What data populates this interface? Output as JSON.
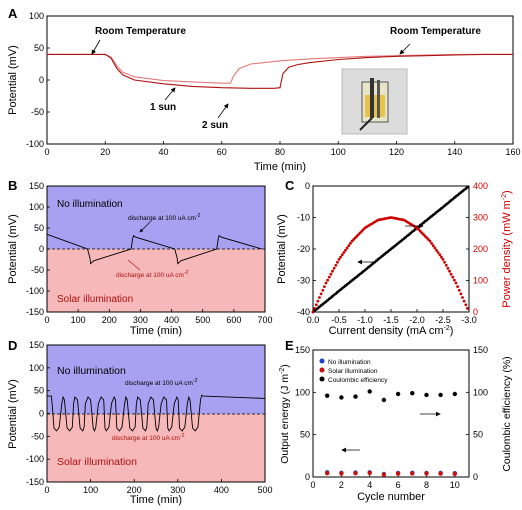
{
  "panels": {
    "A": {
      "letter": "A",
      "xlabel": "Time (min)",
      "ylabel": "Potential (mV)",
      "xticks": [
        "0",
        "20",
        "40",
        "60",
        "80",
        "100",
        "120",
        "140",
        "160"
      ],
      "yticks": [
        "100",
        "50",
        "0",
        "-50",
        "-100"
      ],
      "annotations": [
        "Room Temperature",
        "Room Temperature",
        "1 sun",
        "2 sun"
      ]
    },
    "B": {
      "letter": "B",
      "xlabel": "Time (min)",
      "ylabel": "Potential (mV)",
      "xticks": [
        "0",
        "100",
        "200",
        "300",
        "400",
        "500",
        "600",
        "700"
      ],
      "yticks": [
        "150",
        "100",
        "50",
        "0",
        "-50",
        "-100",
        "-150"
      ],
      "top_label": "No illumination",
      "bottom_label": "Solar illumination",
      "discharge_label": "discharge at 100 uA cm"
    },
    "C": {
      "letter": "C",
      "xlabel": "Current density (mA cm",
      "ylabel_left": "Potential (mV)",
      "ylabel_right": "Power density (mW m",
      "xticks": [
        "0.0",
        "-0.5",
        "-1.0",
        "-1.5",
        "-2.0",
        "-2.5",
        "-3.0"
      ],
      "yticks_left": [
        "0",
        "-10",
        "-20",
        "-30",
        "-40"
      ],
      "yticks_right": [
        "400",
        "300",
        "200",
        "100",
        "0"
      ]
    },
    "D": {
      "letter": "D",
      "xlabel": "Time (min)",
      "ylabel": "Potential (mV)",
      "xticks": [
        "0",
        "100",
        "200",
        "300",
        "400",
        "500"
      ],
      "yticks": [
        "150",
        "100",
        "50",
        "0",
        "-50",
        "-100",
        "-150"
      ],
      "top_label": "No illumination",
      "bottom_label": "Solar illumination",
      "discharge_label": "discharge at 100 uA cm"
    },
    "E": {
      "letter": "E",
      "xlabel": "Cycle number",
      "ylabel_left": "Output energy (J m",
      "ylabel_right": "Coulombic efficiency (%)",
      "xticks": [
        "0",
        "2",
        "4",
        "6",
        "8",
        "10"
      ],
      "yticks_left": [
        "150",
        "100",
        "50",
        "0"
      ],
      "yticks_right": [
        "150",
        "100",
        "50",
        "0"
      ],
      "legend": [
        "No illumination",
        "Solar illumination",
        "Coulombic efficiency"
      ]
    }
  },
  "chart_data": [
    {
      "panel": "A",
      "type": "line",
      "xlim": [
        0,
        160
      ],
      "ylim": [
        -100,
        100
      ],
      "series": [
        {
          "color": "#e07a7a",
          "x": [
            0,
            20,
            22,
            24,
            26,
            30,
            40,
            50,
            60,
            63,
            64,
            66,
            70,
            80,
            90,
            100,
            110,
            120,
            130,
            140,
            150,
            160
          ],
          "y": [
            40,
            40,
            36,
            22,
            12,
            5,
            -1,
            -3,
            -5,
            -5,
            6,
            18,
            25,
            30,
            33,
            35,
            37,
            38,
            39,
            40,
            40,
            40
          ]
        },
        {
          "color": "#b01010",
          "x": [
            0,
            20,
            22,
            24,
            26,
            30,
            40,
            50,
            60,
            70,
            78,
            80,
            81,
            83,
            86,
            90,
            100,
            110,
            120,
            130,
            140,
            150,
            160
          ],
          "y": [
            40,
            40,
            34,
            18,
            8,
            0,
            -6,
            -10,
            -12,
            -13,
            -13,
            -12,
            10,
            20,
            24,
            27,
            32,
            35,
            37,
            38,
            39,
            40,
            40
          ]
        }
      ]
    },
    {
      "panel": "B",
      "type": "line",
      "xlim": [
        0,
        700
      ],
      "ylim": [
        -150,
        150
      ],
      "series": [
        {
          "color": "#000000",
          "x": [
            0,
            130,
            138,
            140,
            150,
            270,
            275,
            278,
            285,
            410,
            418,
            420,
            430,
            545,
            550,
            553,
            560,
            690
          ],
          "y": [
            35,
            0,
            -22,
            -35,
            -28,
            0,
            25,
            32,
            28,
            0,
            -22,
            -35,
            -28,
            0,
            25,
            32,
            28,
            0
          ]
        }
      ]
    },
    {
      "panel": "C",
      "type": "line",
      "xlim": [
        0,
        -3.0
      ],
      "ylim_left": [
        -40,
        0
      ],
      "ylim_right": [
        0,
        400
      ],
      "series": [
        {
          "color": "#000000",
          "axis": "left",
          "x": [
            0,
            -0.25,
            -0.5,
            -0.75,
            -1.0,
            -1.25,
            -1.5,
            -1.75,
            -2.0,
            -2.25,
            -2.5,
            -2.75,
            -3.0
          ],
          "y": [
            -40,
            -36.7,
            -33.3,
            -30,
            -26.7,
            -23.3,
            -20,
            -16.7,
            -13.3,
            -10,
            -6.7,
            -3.3,
            0
          ]
        },
        {
          "color": "#cc0000",
          "axis": "right",
          "x": [
            0,
            -0.25,
            -0.5,
            -0.75,
            -1.0,
            -1.25,
            -1.5,
            -1.75,
            -2.0,
            -2.25,
            -2.5,
            -2.75,
            -3.0
          ],
          "y": [
            0,
            92,
            167,
            225,
            267,
            292,
            300,
            292,
            267,
            225,
            167,
            92,
            0
          ]
        }
      ]
    },
    {
      "panel": "D",
      "type": "line",
      "xlim": [
        0,
        500
      ],
      "ylim": [
        -150,
        150
      ],
      "series": [
        {
          "color": "#000000",
          "x": [
            0,
            10,
            12,
            16,
            22,
            28,
            34,
            37,
            40,
            46,
            52,
            58,
            61,
            64,
            70,
            76,
            82,
            85,
            88,
            94,
            100,
            106,
            109,
            112,
            118,
            124,
            130,
            133,
            136,
            142,
            148,
            154,
            157,
            160,
            166,
            172,
            178,
            181,
            184,
            190,
            196,
            202,
            205,
            208,
            214,
            220,
            226,
            229,
            232,
            238,
            244,
            250,
            253,
            256,
            262,
            268,
            274,
            277,
            280,
            286,
            292,
            298,
            301,
            304,
            310,
            316,
            322,
            325,
            328,
            334,
            340,
            346,
            349,
            352,
            355,
            358,
            500
          ],
          "y": [
            38,
            38,
            20,
            -32,
            -38,
            -30,
            22,
            36,
            30,
            -32,
            -38,
            -30,
            22,
            36,
            30,
            -32,
            -38,
            -30,
            22,
            36,
            30,
            -32,
            -38,
            -30,
            22,
            36,
            30,
            -32,
            -38,
            -30,
            22,
            36,
            30,
            -32,
            -38,
            -30,
            22,
            36,
            30,
            -32,
            -38,
            -30,
            22,
            36,
            30,
            -32,
            -38,
            -30,
            22,
            36,
            30,
            -32,
            -38,
            -30,
            22,
            36,
            30,
            -32,
            -38,
            -30,
            22,
            36,
            30,
            -32,
            -38,
            -30,
            22,
            36,
            30,
            -32,
            -38,
            -30,
            0,
            30,
            40,
            38,
            33
          ]
        }
      ]
    },
    {
      "panel": "E",
      "type": "scatter",
      "xlim": [
        0,
        11
      ],
      "ylim_left": [
        0,
        150
      ],
      "ylim_right": [
        0,
        150
      ],
      "series": [
        {
          "name": "No illumination",
          "color": "#1a3fcf",
          "x": [
            1,
            2,
            3,
            4,
            5,
            6,
            7,
            8,
            9,
            10
          ],
          "y": [
            5.5,
            5.0,
            5.2,
            5.5,
            3.5,
            4.8,
            5.0,
            4.8,
            4.8,
            4.5
          ]
        },
        {
          "name": "Solar illumination",
          "color": "#cc1010",
          "x": [
            1,
            2,
            3,
            4,
            5,
            6,
            7,
            8,
            9,
            10
          ],
          "y": [
            4.5,
            4.2,
            4.5,
            4.8,
            2.8,
            4.0,
            4.3,
            4.2,
            4.0,
            3.8
          ]
        },
        {
          "name": "Coulombic efficiency",
          "color": "#000000",
          "x": [
            1,
            2,
            3,
            4,
            5,
            6,
            7,
            8,
            9,
            10
          ],
          "y": [
            96,
            94,
            95,
            101,
            91,
            98,
            99,
            97,
            97,
            98
          ]
        }
      ]
    }
  ]
}
